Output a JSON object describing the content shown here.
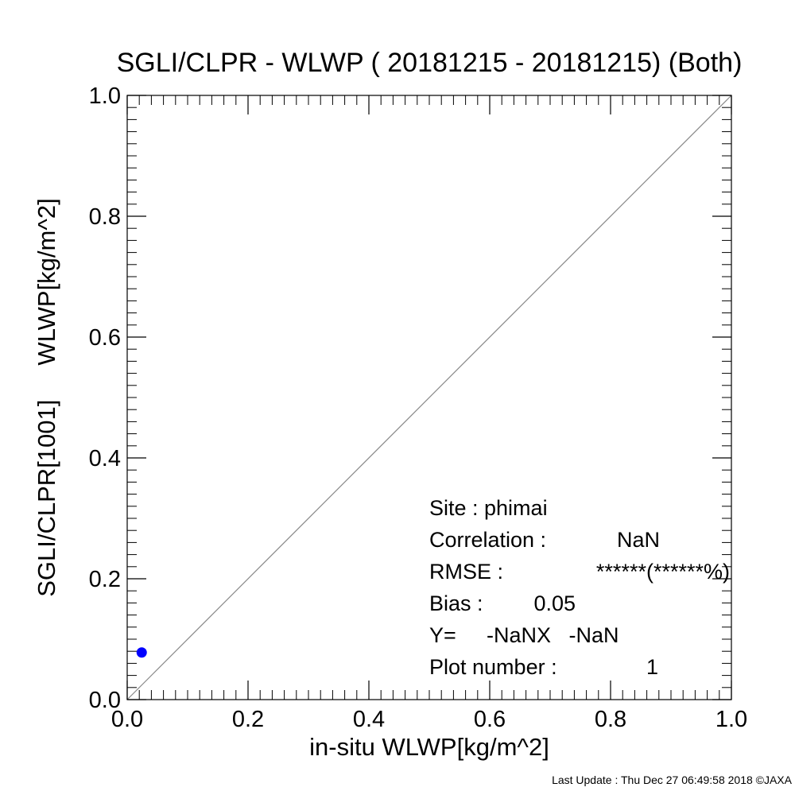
{
  "chart_data": {
    "type": "scatter",
    "title": "SGLI/CLPR - WLWP ( 20181215 - 20181215) (Both)",
    "xlabel": "in-situ WLWP[kg/m^2]",
    "ylabel": "SGLI/CLPR[1001]     WLWP[kg/m^2]",
    "xlim": [
      0.0,
      1.0
    ],
    "ylim": [
      0.0,
      1.0
    ],
    "x_ticks": [
      "0.0",
      "0.2",
      "0.4",
      "0.6",
      "0.8",
      "1.0"
    ],
    "y_ticks": [
      "0.0",
      "0.2",
      "0.4",
      "0.6",
      "0.8",
      "1.0"
    ],
    "grid": false,
    "reference_line": "y = x",
    "series": [
      {
        "x": [
          0.024
        ],
        "y": [
          0.078
        ],
        "color": "#0000ff"
      }
    ],
    "stats": {
      "site": "Site : phimai",
      "correlation_label": "Correlation :",
      "correlation_value": "NaN",
      "rmse_label": "RMSE :",
      "rmse_value": "******(******%)",
      "bias_label": "Bias :",
      "bias_value": "0.05",
      "fit_label": "Y=",
      "fit_value": "-NaNX   -NaN",
      "count_label": "Plot number :",
      "count_value": "1"
    }
  },
  "footer": "Last Update : Thu Dec 27 06:49:58 2018  ©JAXA"
}
